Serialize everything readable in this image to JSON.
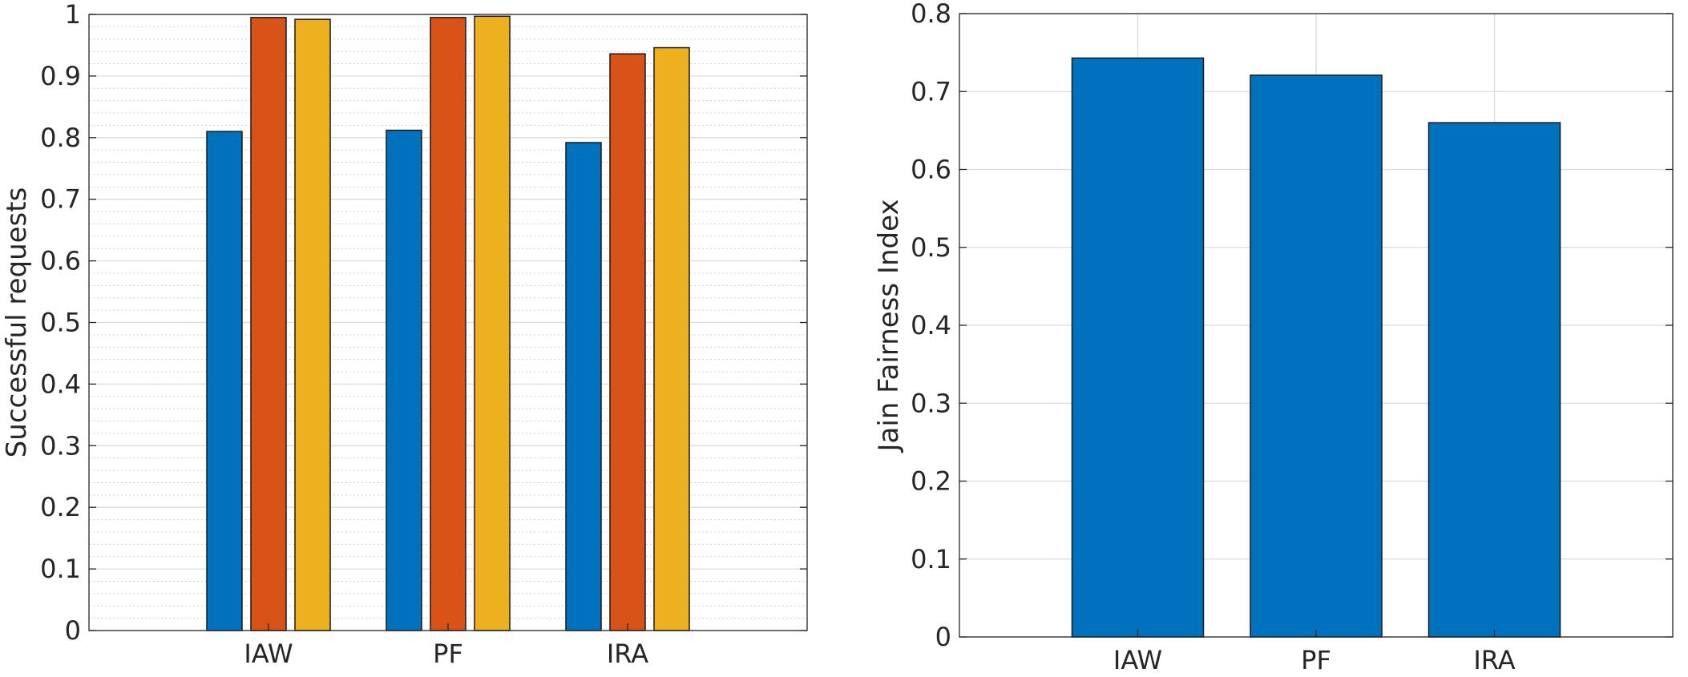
{
  "chart_data": [
    {
      "type": "bar",
      "categories": [
        "IAW",
        "PF",
        "IRA"
      ],
      "series": [
        {
          "values": [
            0.81,
            0.812,
            0.792
          ]
        },
        {
          "values": [
            0.995,
            0.995,
            0.936
          ]
        },
        {
          "values": [
            0.992,
            0.997,
            0.946
          ]
        }
      ],
      "xlabel": "",
      "ylabel": "Successful requests",
      "ylim": [
        0,
        1
      ],
      "yticks": [
        "0",
        "0.1",
        "0.2",
        "0.3",
        "0.4",
        "0.5",
        "0.6",
        "0.7",
        "0.8",
        "0.9",
        "1"
      ],
      "grid": "major and minor, horizontal",
      "colors": [
        "#0072bd",
        "#d95319",
        "#edb120"
      ]
    },
    {
      "type": "bar",
      "categories": [
        "IAW",
        "PF",
        "IRA"
      ],
      "series": [
        {
          "values": [
            0.743,
            0.721,
            0.66
          ]
        }
      ],
      "xlabel": "",
      "ylabel": "Jain Fairness Index",
      "ylim": [
        0,
        0.8
      ],
      "yticks": [
        "0",
        "0.1",
        "0.2",
        "0.3",
        "0.4",
        "0.5",
        "0.6",
        "0.7",
        "0.8"
      ],
      "grid": "major, both axes",
      "colors": [
        "#0072bd"
      ]
    }
  ]
}
